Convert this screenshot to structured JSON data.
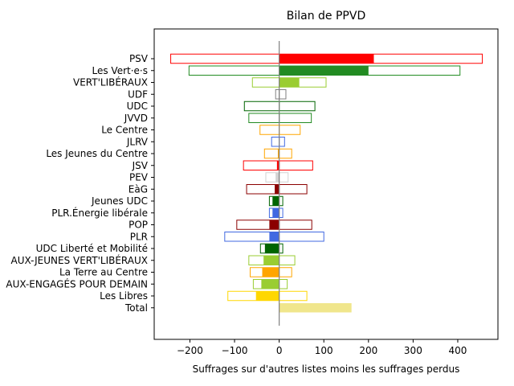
{
  "chart_data": {
    "type": "bar",
    "orientation": "horizontal",
    "title": "Bilan de PPVD",
    "xlabel": "Suffrages sur d'autres listes moins les suffrages perdus",
    "ylabel": "",
    "xlim": [
      -280,
      490
    ],
    "xticks": [
      -200,
      -100,
      0,
      100,
      200,
      300,
      400
    ],
    "xtick_labels": [
      "−200",
      "−100",
      "0",
      "100",
      "200",
      "300",
      "400"
    ],
    "grid": false,
    "reference_line_x": 0,
    "categories": [
      "PSV",
      "Les Vert·e·s",
      "VERT'LIBÉRAUX",
      "UDF",
      "UDC",
      "JVVD",
      "Le Centre",
      "JLRV",
      "Les Jeunes du Centre",
      "JSV",
      "PEV",
      "EàG",
      "Jeunes UDC",
      "PLR.Énergie libérale",
      "POP",
      "PLR",
      "UDC Liberté et Mobilité",
      "AUX-JEUNES VERT'LIBÉRAUX",
      "La Terre au Centre",
      "AUX-ENGAGÉS POUR DEMAIN",
      "Les Libres",
      "Total"
    ],
    "series": [
      {
        "role": "outline",
        "gained": [
          455,
          405,
          105,
          15,
          80,
          72,
          47,
          12,
          28,
          75,
          20,
          62,
          8,
          8,
          73,
          100,
          8,
          35,
          28,
          18,
          62,
          null
        ],
        "lost": [
          -243,
          -202,
          -60,
          -8,
          -78,
          -68,
          -43,
          -17,
          -33,
          -80,
          -30,
          -73,
          -22,
          -22,
          -95,
          -122,
          -42,
          -68,
          -65,
          -58,
          -115,
          null
        ]
      },
      {
        "role": "net",
        "values": [
          212,
          200,
          45,
          0,
          0,
          0,
          0,
          0,
          -3,
          -5,
          -8,
          -10,
          -15,
          -15,
          -22,
          -22,
          -32,
          -35,
          -38,
          -40,
          -52,
          162
        ]
      }
    ],
    "colors": [
      "#ff0000",
      "#228b22",
      "#9acd32",
      "#808080",
      "#006400",
      "#228b22",
      "#ffa500",
      "#4169e1",
      "#ffa500",
      "#ff0000",
      "#d3d3d3",
      "#8b0000",
      "#006400",
      "#4169e1",
      "#8b0000",
      "#4169e1",
      "#006400",
      "#9acd32",
      "#ffa500",
      "#9acd32",
      "#ffd700",
      "#f0e68c"
    ]
  }
}
